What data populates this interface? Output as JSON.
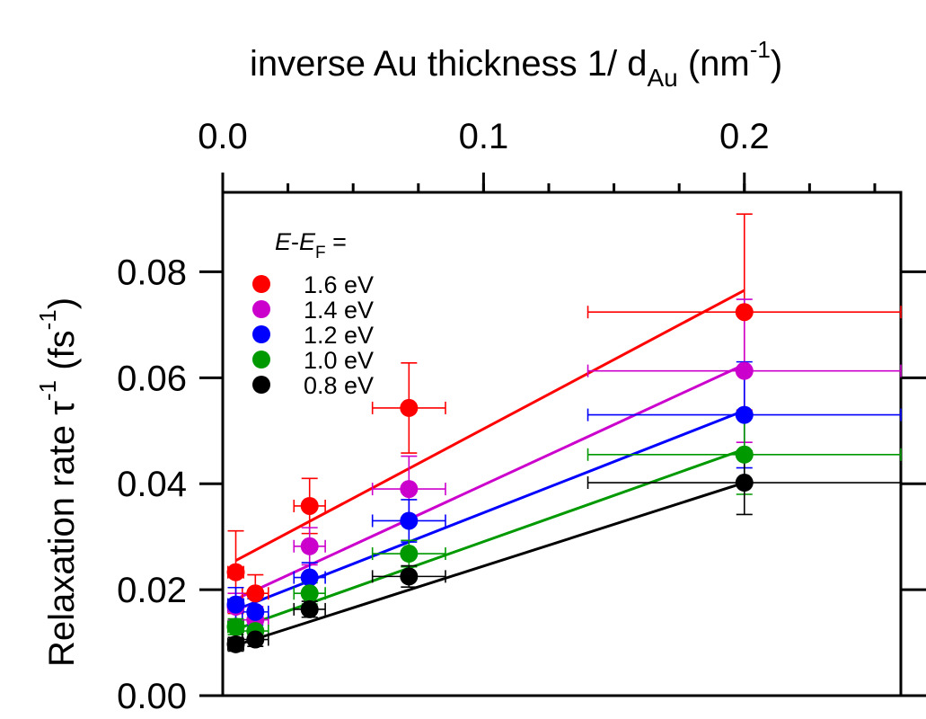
{
  "chart_data": {
    "type": "scatter",
    "title": "",
    "xlabel": {
      "prefix": "inverse Au thickness 1/ d",
      "subscript": "Au",
      "unit_open": " (nm",
      "unit_sup": "-1",
      "unit_close": ")"
    },
    "ylabel": {
      "prefix": "Relaxation rate τ",
      "sup": "-1",
      "unit_open": " (fs",
      "unit_sup": "-1",
      "unit_close": ")"
    },
    "xlim": [
      0.0,
      0.26
    ],
    "ylim": [
      0.0,
      0.095
    ],
    "x_ticks": [
      {
        "value": 0.0,
        "label": "0.0"
      },
      {
        "value": 0.1,
        "label": "0.1"
      },
      {
        "value": 0.2,
        "label": "0.2"
      }
    ],
    "x_minor_step": 0.025,
    "y_ticks": [
      {
        "value": 0.0,
        "label": "0.00"
      },
      {
        "value": 0.02,
        "label": "0.02"
      },
      {
        "value": 0.04,
        "label": "0.04"
      },
      {
        "value": 0.06,
        "label": "0.06"
      },
      {
        "value": 0.08,
        "label": "0.08"
      }
    ],
    "legend": {
      "placement": "top-left",
      "title": {
        "e": "E",
        "dash": "-",
        "ef": "E",
        "ef_sub": "F",
        "eq": " ="
      }
    },
    "x": [
      0.005,
      0.0125,
      0.0333,
      0.0714,
      0.2
    ],
    "x_err": [
      0.003,
      0.005,
      0.006,
      0.014,
      0.06
    ],
    "series": [
      {
        "name": "1.6 eV",
        "color": "#ff0000",
        "y": [
          0.0233,
          0.0193,
          0.0358,
          0.0543,
          0.0724
        ],
        "y_err": [
          0.0078,
          0.0035,
          0.0052,
          0.0085,
          0.0185
        ],
        "fit": [
          0.0255,
          0.0765
        ]
      },
      {
        "name": "1.4 eV",
        "color": "#cc00cc",
        "y": [
          0.0168,
          0.0143,
          0.0282,
          0.039,
          0.0613
        ],
        "y_err": [
          0.0025,
          0.0025,
          0.0035,
          0.0062,
          0.0135
        ],
        "fit": [
          0.0182,
          0.0625
        ]
      },
      {
        "name": "1.2 eV",
        "color": "#0000ff",
        "y": [
          0.0172,
          0.0158,
          0.0223,
          0.033,
          0.053
        ],
        "y_err": [
          0.0032,
          0.0025,
          0.0028,
          0.004,
          0.01
        ],
        "fit": [
          0.0162,
          0.0538
        ]
      },
      {
        "name": "1.0 eV",
        "color": "#009900",
        "y": [
          0.013,
          0.0122,
          0.0193,
          0.0268,
          0.0455
        ],
        "y_err": [
          0.0015,
          0.0018,
          0.002,
          0.0025,
          0.0075
        ],
        "fit": [
          0.0125,
          0.0465
        ]
      },
      {
        "name": "0.8 eV",
        "color": "#000000",
        "y": [
          0.0097,
          0.0106,
          0.0163,
          0.0225,
          0.0402
        ],
        "y_err": [
          0.0013,
          0.0013,
          0.0015,
          0.002,
          0.006
        ],
        "fit": [
          0.0095,
          0.0402
        ]
      }
    ]
  }
}
